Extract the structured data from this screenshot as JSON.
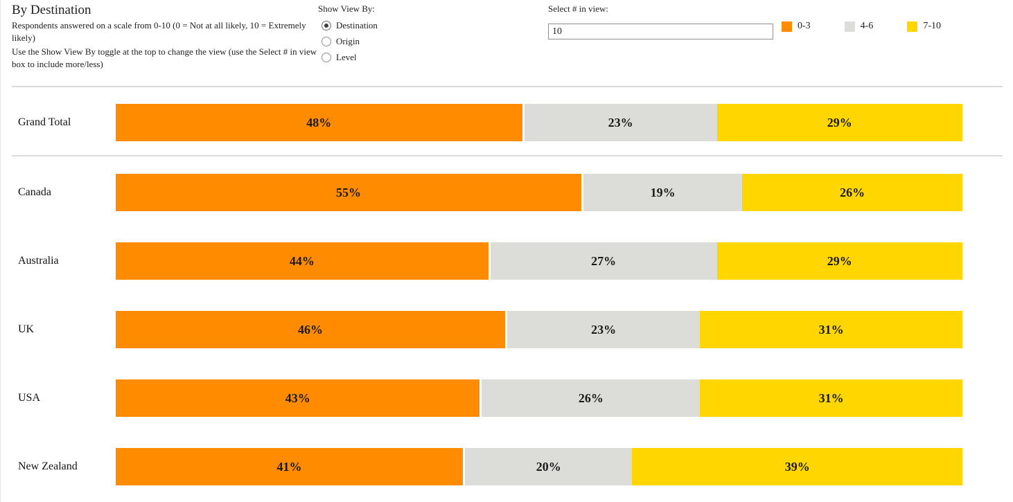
{
  "header": {
    "title": "By Destination",
    "subtitle_line1": "Respondents answered on a scale from 0-10 (0 = Not at all likely, 10 = Extremely likely)",
    "subtitle_line2": "Use the Show View By toggle at the top to change the view (use the Select # in view box to include more/less)"
  },
  "controls": {
    "show_view_by_label": "Show View By:",
    "view_options": [
      {
        "label": "Destination",
        "selected": true
      },
      {
        "label": "Origin",
        "selected": false
      },
      {
        "label": "Level",
        "selected": false
      }
    ],
    "select_in_view_label": "Select # in view:",
    "select_in_view_value": "10"
  },
  "legend": {
    "items": [
      {
        "label": "0-3",
        "color": "#FF8C00"
      },
      {
        "label": "4-6",
        "color": "#DCDCD8"
      },
      {
        "label": "7-10",
        "color": "#FFD600"
      }
    ]
  },
  "chart_data": {
    "type": "bar",
    "orientation": "horizontal",
    "stacked": true,
    "unit": "percent",
    "xlim": [
      0,
      100
    ],
    "categories": [
      "Grand Total",
      "Canada",
      "Australia",
      "UK",
      "USA",
      "New Zealand"
    ],
    "series": [
      {
        "name": "0-3",
        "color": "#FF8C00",
        "values": [
          48,
          55,
          44,
          46,
          43,
          41
        ]
      },
      {
        "name": "4-6",
        "color": "#DCDCD8",
        "values": [
          23,
          19,
          27,
          23,
          26,
          20
        ]
      },
      {
        "name": "7-10",
        "color": "#FFD600",
        "values": [
          29,
          26,
          29,
          31,
          31,
          39
        ]
      }
    ],
    "value_label_format": "{v}%"
  }
}
